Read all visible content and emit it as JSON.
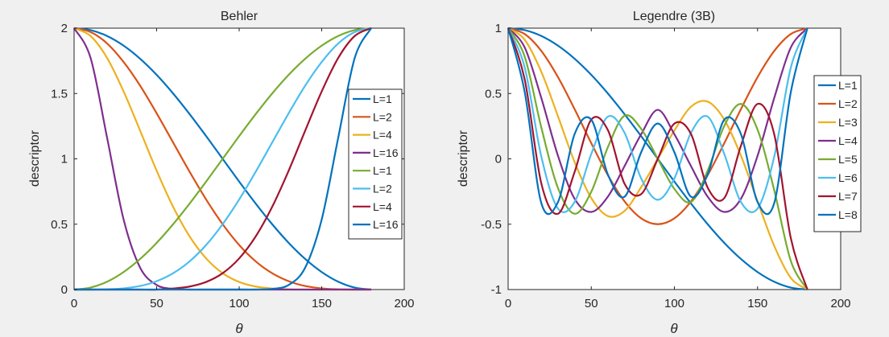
{
  "colors": {
    "background": "#f0f0f0",
    "axes_background": "#ffffff",
    "axis": "#262626",
    "series": [
      "#0072BD",
      "#D95319",
      "#EDB120",
      "#7E2F8E",
      "#77AC30",
      "#4DBEEE",
      "#A2142F",
      "#0072BD"
    ]
  },
  "chart_data": [
    {
      "type": "line",
      "title": "Behler",
      "xlabel": "θ",
      "ylabel": "descriptor",
      "xlim": [
        0,
        200
      ],
      "ylim": [
        0,
        2
      ],
      "xticks": [
        0,
        50,
        100,
        150,
        200
      ],
      "yticks": [
        0,
        0.5,
        1,
        1.5,
        2
      ],
      "xtick_labels": [
        "0",
        "50",
        "100",
        "150",
        "200"
      ],
      "ytick_labels": [
        "0",
        "0.5",
        "1",
        "1.5",
        "2"
      ],
      "legend_position": "right-middle",
      "x": [
        0,
        10,
        20,
        30,
        40,
        50,
        60,
        70,
        80,
        90,
        100,
        110,
        120,
        130,
        140,
        150,
        160,
        170,
        180
      ],
      "series": [
        {
          "name": "L=1",
          "values": [
            2,
            1.985,
            1.94,
            1.866,
            1.766,
            1.643,
            1.5,
            1.342,
            1.174,
            1,
            0.826,
            0.658,
            0.5,
            0.357,
            0.234,
            0.134,
            0.06,
            0.015,
            0
          ]
        },
        {
          "name": "L=2",
          "values": [
            2,
            1.97,
            1.883,
            1.741,
            1.56,
            1.349,
            1.125,
            0.901,
            0.689,
            0.5,
            0.341,
            0.216,
            0.125,
            0.064,
            0.027,
            0.009,
            0.002,
            0,
            0
          ]
        },
        {
          "name": "L=4",
          "values": [
            2,
            1.94,
            1.772,
            1.516,
            1.216,
            0.91,
            0.633,
            0.406,
            0.238,
            0.125,
            0.058,
            0.023,
            0.008,
            0.002,
            0,
            0,
            0,
            0,
            0
          ]
        },
        {
          "name": "L=16",
          "values": [
            2,
            1.772,
            1.161,
            0.536,
            0.168,
            0.035,
            0.005,
            0,
            0,
            0,
            0,
            0,
            0,
            0,
            0,
            0,
            0,
            0,
            0
          ]
        },
        {
          "name": "L=1",
          "values": [
            0,
            0.015,
            0.06,
            0.134,
            0.234,
            0.357,
            0.5,
            0.658,
            0.826,
            1,
            1.174,
            1.342,
            1.5,
            1.643,
            1.766,
            1.866,
            1.94,
            1.985,
            2
          ]
        },
        {
          "name": "L=2",
          "values": [
            0,
            0,
            0.002,
            0.009,
            0.027,
            0.064,
            0.125,
            0.216,
            0.341,
            0.5,
            0.689,
            0.901,
            1.125,
            1.349,
            1.56,
            1.741,
            1.883,
            1.97,
            2
          ]
        },
        {
          "name": "L=4",
          "values": [
            0,
            0,
            0,
            0,
            0,
            0,
            0.008,
            0.023,
            0.058,
            0.125,
            0.238,
            0.406,
            0.633,
            0.91,
            1.216,
            1.516,
            1.772,
            1.94,
            2
          ]
        },
        {
          "name": "L=16",
          "values": [
            0,
            0,
            0,
            0,
            0,
            0,
            0,
            0,
            0,
            0,
            0,
            0,
            0.005,
            0.035,
            0.168,
            0.536,
            1.161,
            1.772,
            2
          ]
        }
      ]
    },
    {
      "type": "line",
      "title": "Legendre (3B)",
      "xlabel": "θ",
      "ylabel": "descriptor",
      "xlim": [
        0,
        200
      ],
      "ylim": [
        -1,
        1
      ],
      "xticks": [
        0,
        50,
        100,
        150,
        200
      ],
      "yticks": [
        -1,
        -0.5,
        0,
        0.5,
        1
      ],
      "xtick_labels": [
        "0",
        "50",
        "100",
        "150",
        "200"
      ],
      "ytick_labels": [
        "-1",
        "-0.5",
        "0",
        "0.5",
        "1"
      ],
      "legend_position": "right-middle",
      "x": [
        0,
        10,
        20,
        30,
        40,
        50,
        60,
        70,
        80,
        90,
        100,
        110,
        120,
        130,
        140,
        150,
        160,
        170,
        180
      ],
      "series": [
        {
          "name": "L=1",
          "values": [
            1,
            0.985,
            0.94,
            0.866,
            0.766,
            0.643,
            0.5,
            0.342,
            0.174,
            0,
            -0.174,
            -0.342,
            -0.5,
            -0.643,
            -0.766,
            -0.866,
            -0.94,
            -0.985,
            -1
          ]
        },
        {
          "name": "L=2",
          "values": [
            1,
            0.955,
            0.825,
            0.625,
            0.38,
            0.12,
            -0.125,
            -0.325,
            -0.455,
            -0.5,
            -0.455,
            -0.325,
            -0.125,
            0.12,
            0.38,
            0.625,
            0.825,
            0.955,
            1
          ]
        },
        {
          "name": "L=3",
          "values": [
            1,
            0.911,
            0.665,
            0.325,
            -0.025,
            -0.3,
            -0.438,
            -0.399,
            -0.217,
            0,
            0.217,
            0.399,
            0.438,
            0.3,
            0.025,
            -0.325,
            -0.665,
            -0.911,
            -1
          ]
        },
        {
          "name": "L=4",
          "values": [
            1,
            0.852,
            0.464,
            0.023,
            -0.306,
            -0.406,
            -0.289,
            -0.056,
            0.188,
            0.375,
            0.188,
            -0.056,
            -0.289,
            -0.406,
            -0.306,
            0.023,
            0.464,
            0.852,
            1
          ]
        },
        {
          "name": "L=5",
          "values": [
            1,
            0.781,
            0.238,
            -0.224,
            -0.42,
            -0.252,
            0.09,
            0.33,
            0.23,
            0,
            -0.23,
            -0.33,
            -0.09,
            0.252,
            0.42,
            0.224,
            -0.238,
            -0.781,
            -1
          ]
        },
        {
          "name": "L=6",
          "values": [
            1,
            0.698,
            0.015,
            -0.381,
            -0.33,
            0.037,
            0.323,
            0.2,
            -0.149,
            -0.313,
            -0.149,
            0.2,
            0.323,
            0.037,
            -0.33,
            -0.381,
            0.015,
            0.698,
            1
          ]
        },
        {
          "name": "L=7",
          "values": [
            1,
            0.606,
            -0.19,
            -0.42,
            -0.1,
            0.3,
            0.22,
            -0.19,
            -0.27,
            0,
            0.27,
            0.19,
            -0.22,
            -0.3,
            0.1,
            0.42,
            0.19,
            -0.606,
            -1
          ]
        },
        {
          "name": "L=8",
          "values": [
            1,
            0.51,
            -0.34,
            -0.33,
            0.19,
            0.3,
            -0.12,
            -0.29,
            0.05,
            0.27,
            0.05,
            -0.29,
            -0.12,
            0.3,
            0.19,
            -0.33,
            -0.34,
            0.51,
            1
          ]
        }
      ]
    }
  ]
}
